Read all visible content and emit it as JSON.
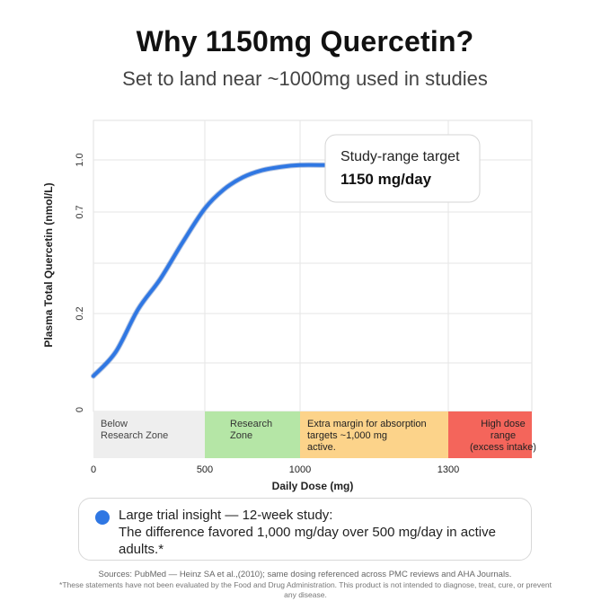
{
  "header": {
    "title": "Why 1150mg Quercetin?",
    "subtitle": "Set to land near ~1000mg used in studies"
  },
  "chart_data": {
    "type": "line",
    "ylabel": "Plasma Total Quercetin (nmol/L)",
    "xlabel": "Daily Dose (mg)",
    "x_ticks": [
      "0",
      "500",
      "1000",
      "1300"
    ],
    "y_ticks": [
      "0",
      "0.2",
      "0.7",
      "1.0"
    ],
    "grid": true,
    "series": [
      {
        "color": "#2f77e3",
        "x": [
          0,
          100,
          200,
          300,
          400,
          500,
          600,
          700,
          800,
          900,
          1000,
          1050
        ],
        "y": [
          0.07,
          0.12,
          0.22,
          0.37,
          0.55,
          0.72,
          0.83,
          0.9,
          0.94,
          0.96,
          0.97,
          0.97
        ]
      }
    ],
    "callout": {
      "label": "Study-range target",
      "value": "1150 mg/day"
    },
    "zones": [
      {
        "lines": [
          "Below",
          "Research Zone"
        ],
        "from": 0,
        "to": 500,
        "color": "#eeeeee",
        "text_color": "#444444",
        "align": "left"
      },
      {
        "lines": [
          "Research",
          "Zone"
        ],
        "from": 500,
        "to": 1000,
        "color": "#b5e6a6",
        "text_color": "#333333",
        "align": "left"
      },
      {
        "lines": [
          "Extra margin for absorption",
          "targets ~1,000 mg",
          "active."
        ],
        "from": 1000,
        "to": 1300,
        "color": "#fcd38a",
        "text_color": "#222222",
        "align": "left"
      },
      {
        "lines": [
          "High dose",
          "range",
          "(excess intake)"
        ],
        "from": 1300,
        "to": 1500,
        "color": "#f4655b",
        "text_color": "#222222",
        "align": "right"
      }
    ]
  },
  "insight": {
    "line1": "Large trial insight — 12-week study:",
    "line2": "The difference favored 1,000 mg/day over 500 mg/day in active adults.*"
  },
  "footer": {
    "sources": "Sources: PubMed — Heinz SA et al.,(2010); same dosing referenced across PMC reviews and AHA Journals.",
    "disclaimer": "*These statements have not been evaluated by the Food and Drug Administration. This product is not intended to diagnose, treat, cure, or prevent any disease."
  }
}
